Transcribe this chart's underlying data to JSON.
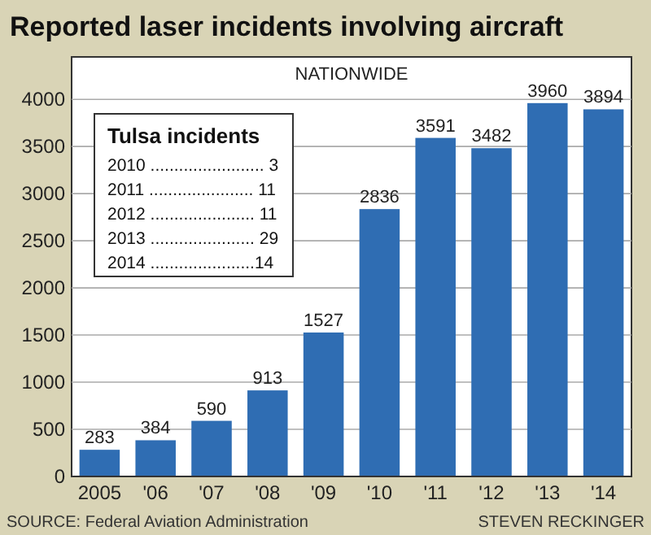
{
  "chart_data": {
    "type": "bar",
    "title": "Reported laser incidents involving aircraft",
    "subtitle": "NATIONWIDE",
    "categories": [
      "2005",
      "'06",
      "'07",
      "'08",
      "'09",
      "'10",
      "'11",
      "'12",
      "'13",
      "'14"
    ],
    "values": [
      283,
      384,
      590,
      913,
      1527,
      2836,
      3591,
      3482,
      3960,
      3894
    ],
    "color": "#2f6db3",
    "ylim": [
      0,
      4450
    ],
    "yticks": [
      0,
      500,
      1000,
      1500,
      2000,
      2500,
      3000,
      3500,
      4000
    ],
    "grid": "y",
    "data_labels": true,
    "annotations": [
      "SOURCE: Federal Aviation Administration",
      "STEVEN RECKINGER",
      "Tulsa incidents",
      "2010 ........................ 3",
      "2011 ...................... 11",
      "2012 ...................... 11",
      "2013 ...................... 29",
      "2014 ......................14"
    ]
  }
}
